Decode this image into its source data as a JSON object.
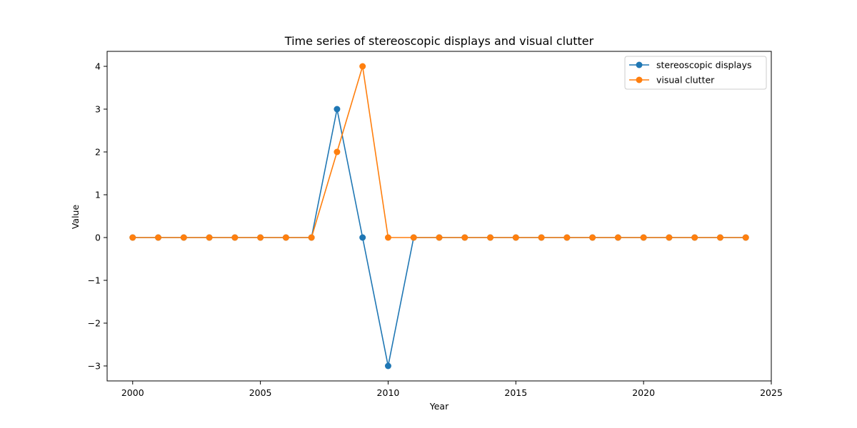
{
  "chart_data": {
    "type": "line",
    "title": "Time series of stereoscopic displays and visual clutter",
    "xlabel": "Year",
    "ylabel": "Value",
    "xlim": [
      1999,
      2025
    ],
    "ylim": [
      -3.35,
      4.35
    ],
    "xticks": [
      2000,
      2005,
      2010,
      2015,
      2020,
      2025
    ],
    "yticks": [
      -3,
      -2,
      -1,
      0,
      1,
      2,
      3,
      4
    ],
    "ytick_labels": [
      "−3",
      "−2",
      "−1",
      "0",
      "1",
      "2",
      "3",
      "4"
    ],
    "grid": false,
    "legend_position": "top-right",
    "x": [
      2000,
      2001,
      2002,
      2003,
      2004,
      2005,
      2006,
      2007,
      2008,
      2009,
      2010,
      2011,
      2012,
      2013,
      2014,
      2015,
      2016,
      2017,
      2018,
      2019,
      2020,
      2021,
      2022,
      2023,
      2024
    ],
    "series": [
      {
        "name": "stereoscopic displays",
        "color": "#1f77b4",
        "marker": "circle",
        "values": [
          0,
          0,
          0,
          0,
          0,
          0,
          0,
          0,
          3,
          0,
          -3,
          0,
          0,
          0,
          0,
          0,
          0,
          0,
          0,
          0,
          0,
          0,
          0,
          0,
          0
        ]
      },
      {
        "name": "visual clutter",
        "color": "#ff7f0e",
        "marker": "circle",
        "values": [
          0,
          0,
          0,
          0,
          0,
          0,
          0,
          0,
          2,
          4,
          0,
          0,
          0,
          0,
          0,
          0,
          0,
          0,
          0,
          0,
          0,
          0,
          0,
          0,
          0
        ]
      }
    ]
  }
}
